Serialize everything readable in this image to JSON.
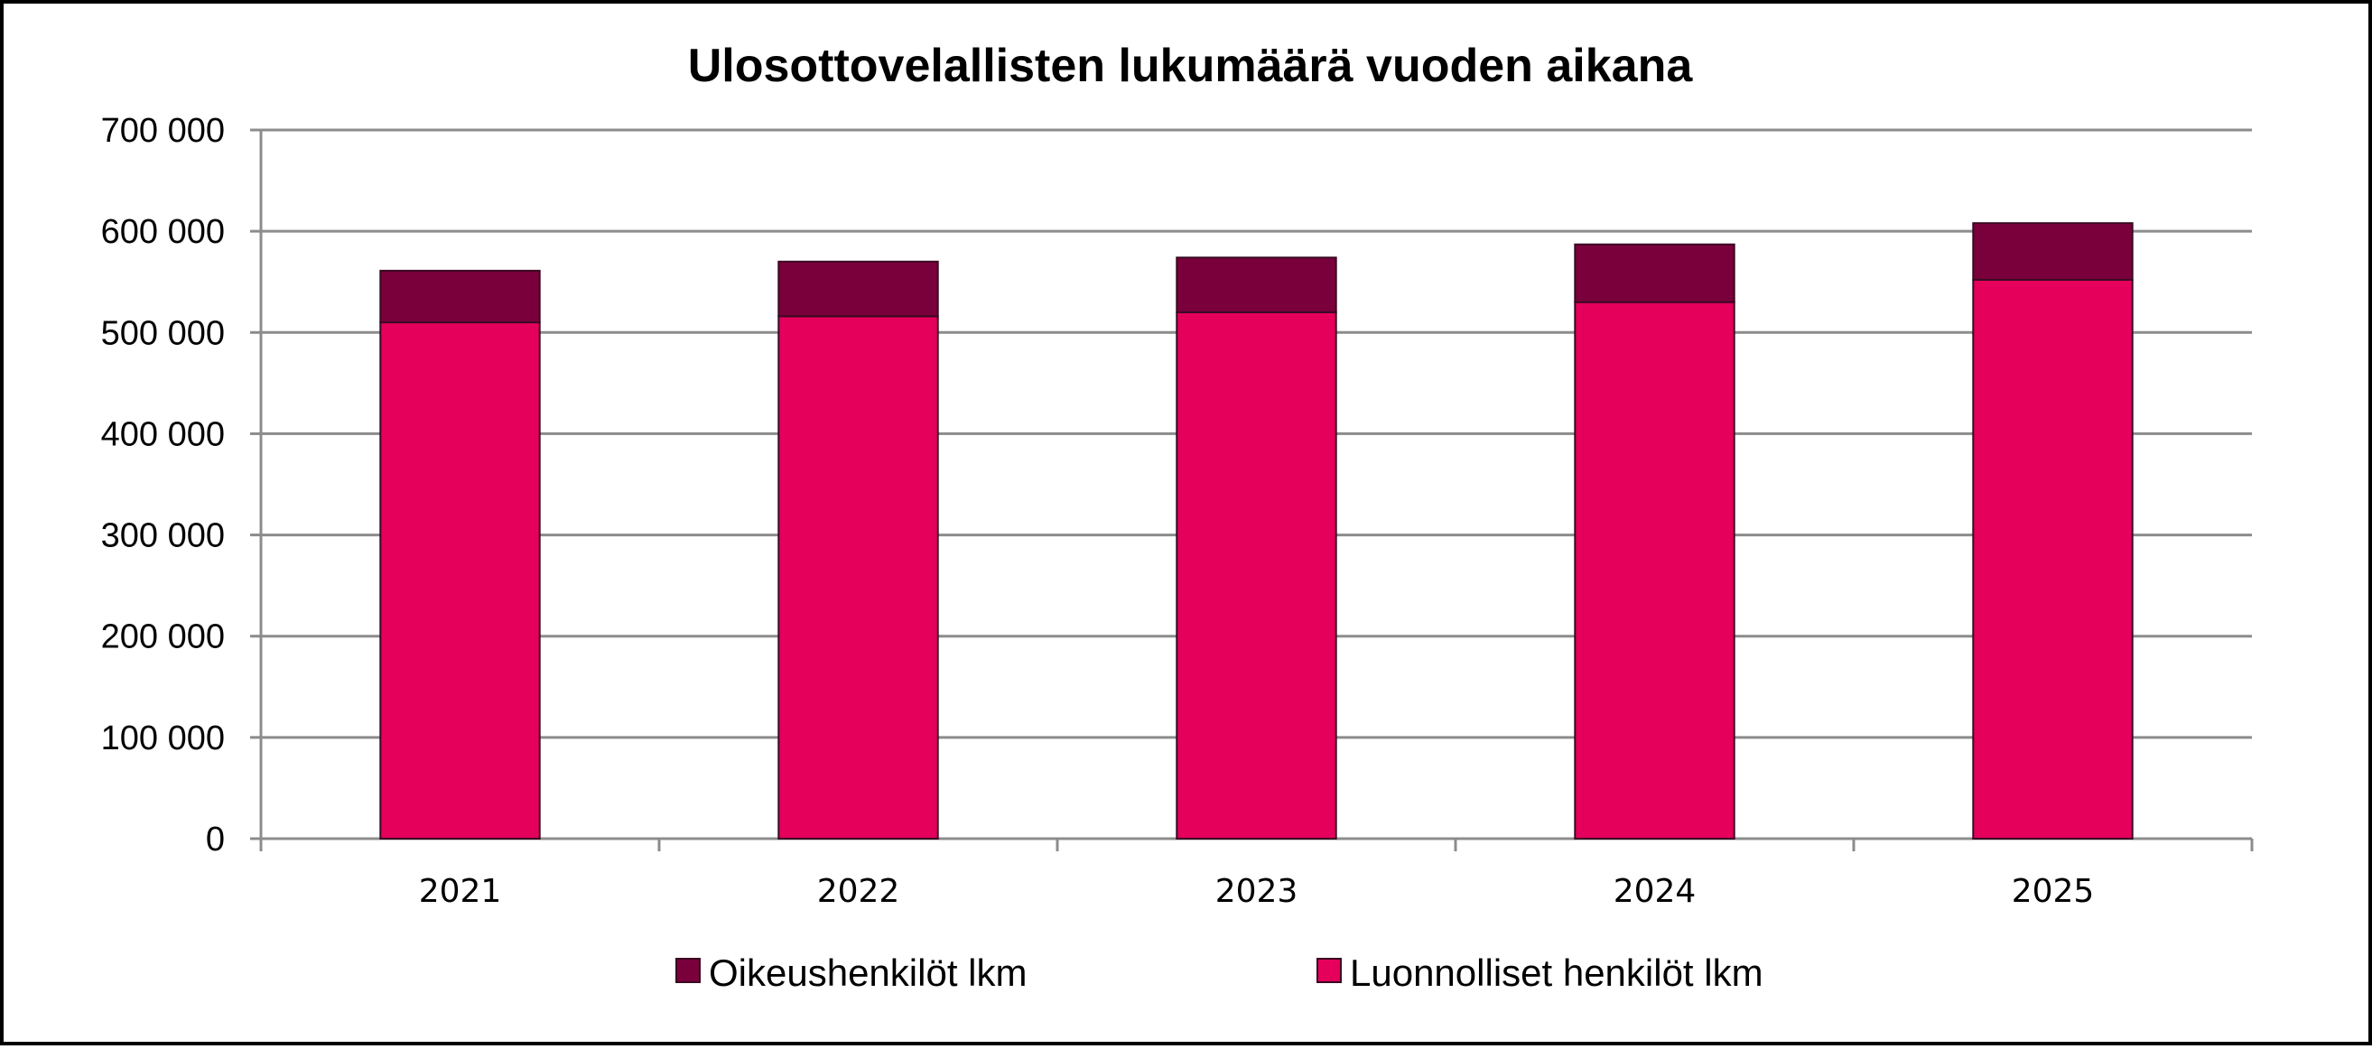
{
  "chart_data": {
    "type": "bar",
    "stacked": true,
    "title": "Ulosottovelallisten lukumäärä vuoden aikana",
    "categories": [
      "2021",
      "2022",
      "2023",
      "2024",
      "2025"
    ],
    "series": [
      {
        "name": "Luonnolliset henkilöt lkm",
        "color": "#e5005c",
        "values": [
          510000,
          516000,
          520000,
          530000,
          552000
        ]
      },
      {
        "name": "Oikeushenkilöt lkm",
        "color": "#7a003c",
        "values": [
          51000,
          54000,
          54000,
          57000,
          56000
        ]
      }
    ],
    "ylim": [
      0,
      700000
    ],
    "yticks": [
      {
        "value": 0,
        "label": "0"
      },
      {
        "value": 100000,
        "label": "100 000"
      },
      {
        "value": 200000,
        "label": "200 000"
      },
      {
        "value": 300000,
        "label": "300 000"
      },
      {
        "value": 400000,
        "label": "400 000"
      },
      {
        "value": 500000,
        "label": "500 000"
      },
      {
        "value": 600000,
        "label": "600 000"
      },
      {
        "value": 700000,
        "label": "700 000"
      }
    ],
    "grid": true,
    "legend": {
      "position": "bottom",
      "order": [
        "Oikeushenkilöt lkm",
        "Luonnolliset henkilöt lkm"
      ]
    }
  }
}
